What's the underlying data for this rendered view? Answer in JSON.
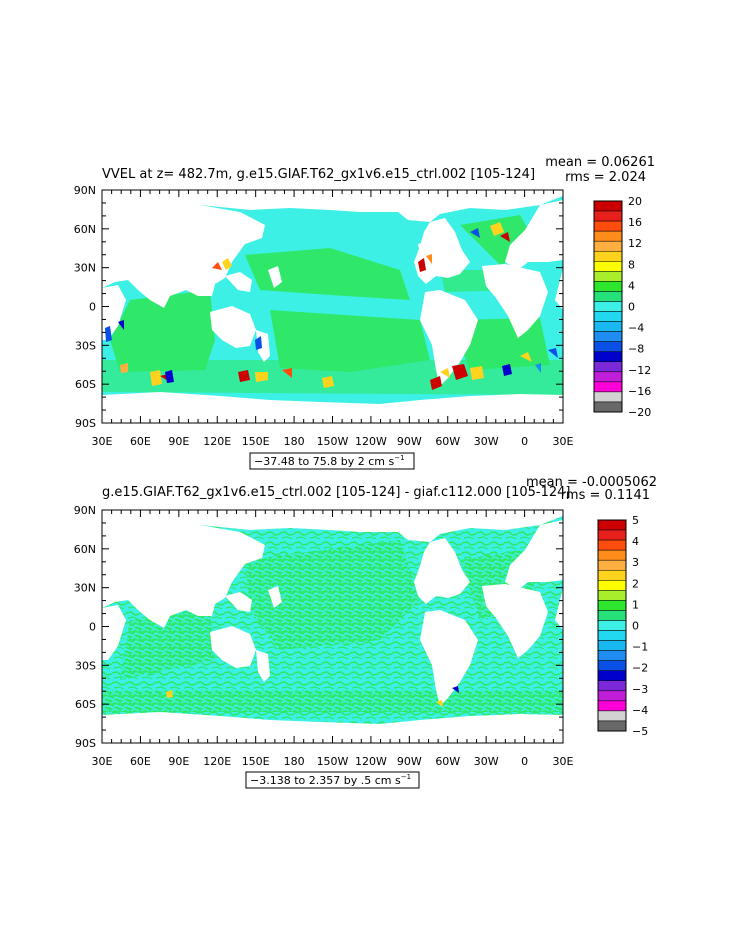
{
  "colors": {
    "ocean_bg": "#3df0e6",
    "near_zero_pos": "#2fe86a",
    "land": "#ffffff"
  },
  "chart_data": [
    {
      "type": "heatmap",
      "title": "VVEL at z= 482.7m, g.e15.GIAF.T62_gx1v6.e15_ctrl.002 [105-124]",
      "stats": [
        "mean = 0.06261",
        "rms = 2.024"
      ],
      "xticks": [
        "30E",
        "60E",
        "90E",
        "120E",
        "150E",
        "180",
        "150W",
        "120W",
        "90W",
        "60W",
        "30W",
        "0",
        "30E"
      ],
      "yticks": [
        "90N",
        "60N",
        "30N",
        "0",
        "30S",
        "60S",
        "90S"
      ],
      "range_label": "−37.48 to 75.8 by 2 cm s",
      "range_label_sup": "−1",
      "colorbar": {
        "labels": [
          "20",
          "16",
          "12",
          "8",
          "4",
          "0",
          "−4",
          "−8",
          "−12",
          "−16",
          "−20"
        ],
        "colors": [
          "#cc0000",
          "#e8201c",
          "#ff4d10",
          "#ff8c1a",
          "#ffae42",
          "#ffd21e",
          "#ffff00",
          "#a8ee2a",
          "#2ee62e",
          "#26e07a",
          "#3df0e6",
          "#22d8f0",
          "#1ab8f0",
          "#1e8cf0",
          "#0a50e6",
          "#0000cc",
          "#7a28d8",
          "#c01ed8",
          "#ff00d8",
          "#d2d2d2",
          "#686868"
        ]
      }
    },
    {
      "type": "heatmap",
      "title": "g.e15.GIAF.T62_gx1v6.e15_ctrl.002 [105-124] - giaf.c112.000 [105-124]",
      "stats": [
        "mean = -0.0005062",
        "rms = 0.1141"
      ],
      "xticks": [
        "30E",
        "60E",
        "90E",
        "120E",
        "150E",
        "180",
        "150W",
        "120W",
        "90W",
        "60W",
        "30W",
        "0",
        "30E"
      ],
      "yticks": [
        "90N",
        "60N",
        "30N",
        "0",
        "30S",
        "60S",
        "90S"
      ],
      "range_label": "−3.138 to 2.357 by .5 cm s",
      "range_label_sup": "−1",
      "colorbar": {
        "labels": [
          "5",
          "4",
          "3",
          "2",
          "1",
          "0",
          "−1",
          "−2",
          "−3",
          "−4",
          "−5"
        ],
        "colors": [
          "#cc0000",
          "#e8201c",
          "#ff4d10",
          "#ff8c1a",
          "#ffae42",
          "#ffd21e",
          "#ffff00",
          "#a8ee2a",
          "#2ee62e",
          "#26e07a",
          "#3df0e6",
          "#22d8f0",
          "#1ab8f0",
          "#1e8cf0",
          "#0a50e6",
          "#0000cc",
          "#7a28d8",
          "#c01ed8",
          "#ff00d8",
          "#d2d2d2",
          "#686868"
        ]
      }
    }
  ]
}
